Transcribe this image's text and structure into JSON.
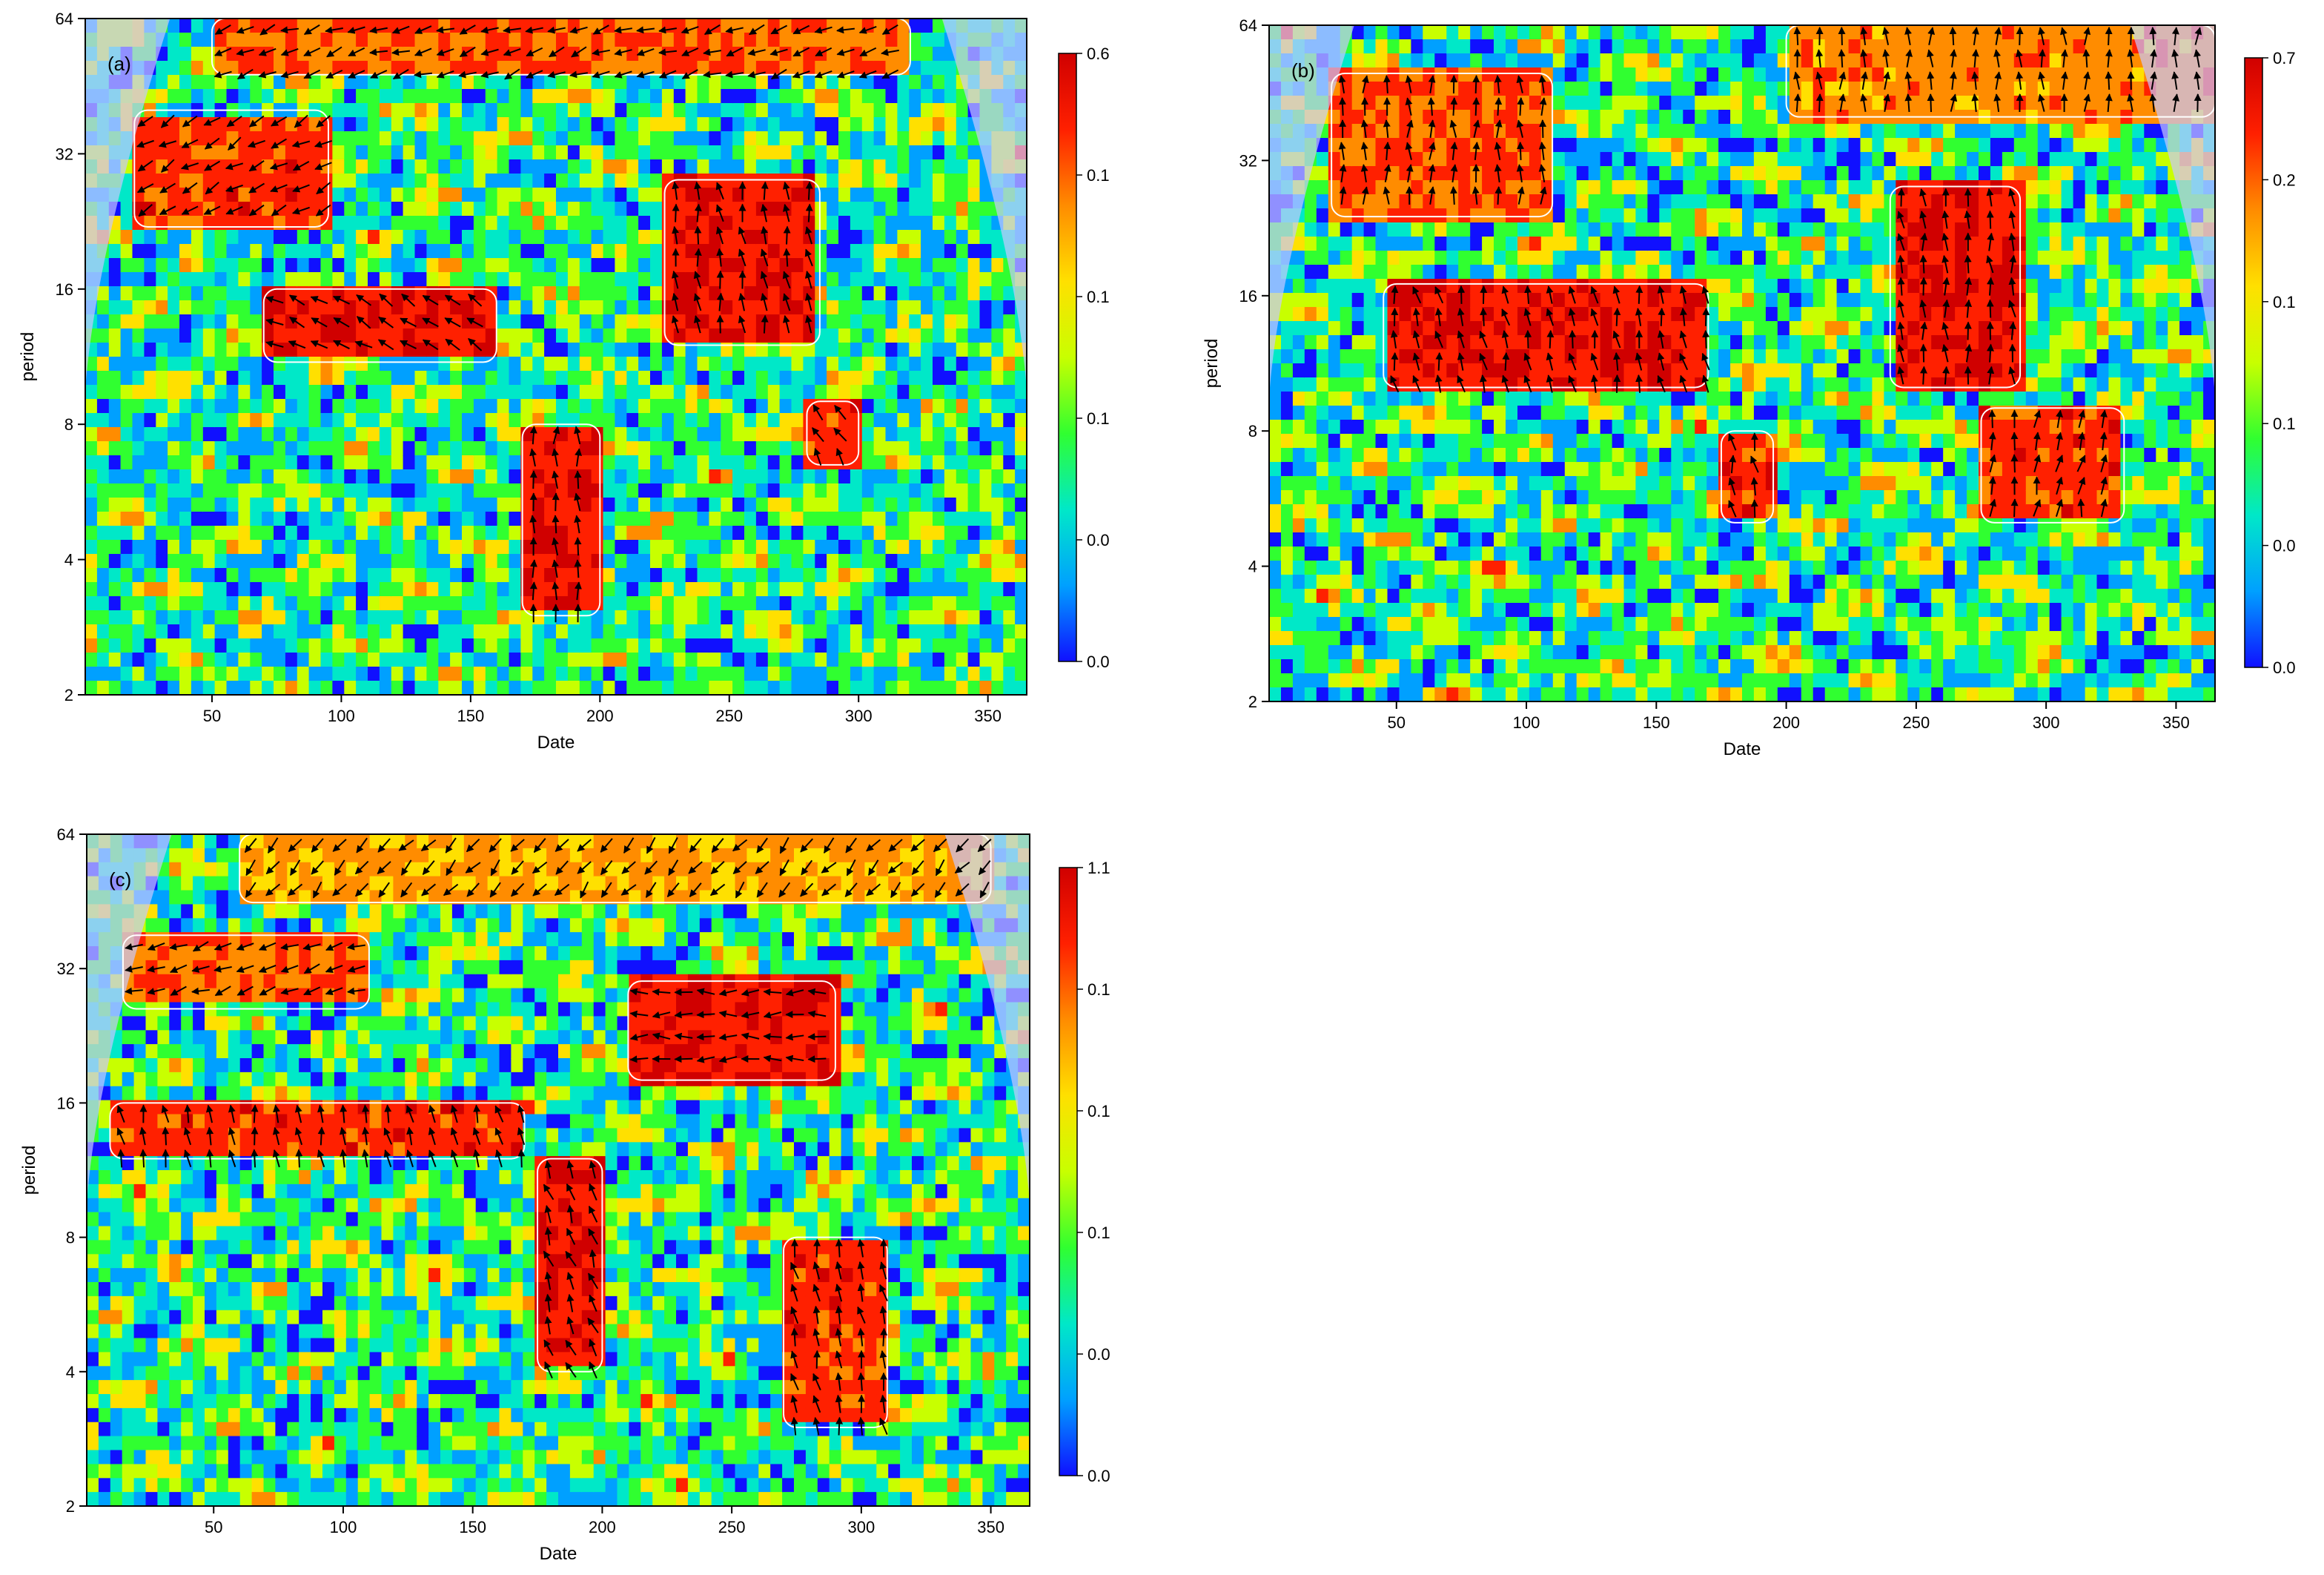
{
  "chart_data": [
    {
      "type": "heatmap",
      "panel_label": "(a)",
      "xlabel": "Date",
      "ylabel": "period",
      "xlim": [
        1,
        365
      ],
      "ylim": [
        2,
        64
      ],
      "y_scale": "log2",
      "x_ticks": [
        50,
        100,
        150,
        200,
        250,
        300,
        350
      ],
      "y_ticks": [
        2,
        4,
        8,
        16,
        32,
        64
      ],
      "colorbar_labels": [
        "0.6",
        "0.1",
        "0.1",
        "0.1",
        "0.0",
        "0.0"
      ],
      "colormap": [
        "#1010ff",
        "#00a0ff",
        "#00e8c8",
        "#30ff30",
        "#c8ff00",
        "#ffe000",
        "#ff8c00",
        "#ff2000",
        "#d00000"
      ],
      "regions": [
        {
          "x0": 20,
          "x1": 95,
          "p0": 22,
          "p1": 40,
          "level": 0.9,
          "arrow_dir": 210
        },
        {
          "x0": 50,
          "x1": 320,
          "p0": 48,
          "p1": 64,
          "level": 0.85,
          "arrow_dir": 200
        },
        {
          "x0": 70,
          "x1": 160,
          "p0": 11,
          "p1": 16,
          "level": 0.95,
          "arrow_dir": 150
        },
        {
          "x0": 225,
          "x1": 285,
          "p0": 12,
          "p1": 28,
          "level": 0.95,
          "arrow_dir": 100
        },
        {
          "x0": 170,
          "x1": 200,
          "p0": 3,
          "p1": 8,
          "level": 0.95,
          "arrow_dir": 90
        },
        {
          "x0": 280,
          "x1": 300,
          "p0": 6.5,
          "p1": 9,
          "level": 0.9,
          "arrow_dir": 120
        }
      ]
    },
    {
      "type": "heatmap",
      "panel_label": "(b)",
      "xlabel": "Date",
      "ylabel": "period",
      "xlim": [
        1,
        365
      ],
      "ylim": [
        2,
        64
      ],
      "y_scale": "log2",
      "x_ticks": [
        50,
        100,
        150,
        200,
        250,
        300,
        350
      ],
      "y_ticks": [
        2,
        4,
        8,
        16,
        32,
        64
      ],
      "colorbar_labels": [
        "0.7",
        "0.2",
        "0.1",
        "0.1",
        "0.0",
        "0.0"
      ],
      "colormap": [
        "#1010ff",
        "#00a0ff",
        "#00e8c8",
        "#30ff30",
        "#c8ff00",
        "#ffe000",
        "#ff8c00",
        "#ff2000",
        "#d00000"
      ],
      "regions": [
        {
          "x0": 25,
          "x1": 110,
          "p0": 24,
          "p1": 50,
          "level": 0.85,
          "arrow_dir": 90
        },
        {
          "x0": 200,
          "x1": 365,
          "p0": 40,
          "p1": 64,
          "level": 0.8,
          "arrow_dir": 90
        },
        {
          "x0": 45,
          "x1": 170,
          "p0": 10,
          "p1": 17,
          "level": 0.95,
          "arrow_dir": 100
        },
        {
          "x0": 240,
          "x1": 290,
          "p0": 10,
          "p1": 28,
          "level": 0.95,
          "arrow_dir": 95
        },
        {
          "x0": 275,
          "x1": 330,
          "p0": 5,
          "p1": 9,
          "level": 0.9,
          "arrow_dir": 80
        },
        {
          "x0": 175,
          "x1": 195,
          "p0": 5,
          "p1": 8,
          "level": 0.9,
          "arrow_dir": 100
        }
      ]
    },
    {
      "type": "heatmap",
      "panel_label": "(c)",
      "xlabel": "Date",
      "ylabel": "period",
      "xlim": [
        1,
        365
      ],
      "ylim": [
        2,
        64
      ],
      "y_scale": "log2",
      "x_ticks": [
        50,
        100,
        150,
        200,
        250,
        300,
        350
      ],
      "y_ticks": [
        2,
        4,
        8,
        16,
        32,
        64
      ],
      "colorbar_labels": [
        "1.1",
        "0.1",
        "0.1",
        "0.1",
        "0.0",
        "0.0"
      ],
      "colormap": [
        "#1010ff",
        "#00a0ff",
        "#00e8c8",
        "#30ff30",
        "#c8ff00",
        "#ffe000",
        "#ff8c00",
        "#ff2000",
        "#d00000"
      ],
      "regions": [
        {
          "x0": 15,
          "x1": 110,
          "p0": 26,
          "p1": 38,
          "level": 0.85,
          "arrow_dir": 200
        },
        {
          "x0": 60,
          "x1": 350,
          "p0": 45,
          "p1": 64,
          "level": 0.75,
          "arrow_dir": 230
        },
        {
          "x0": 210,
          "x1": 290,
          "p0": 18,
          "p1": 30,
          "level": 0.95,
          "arrow_dir": 180
        },
        {
          "x0": 10,
          "x1": 170,
          "p0": 12,
          "p1": 16,
          "level": 0.9,
          "arrow_dir": 100
        },
        {
          "x0": 175,
          "x1": 200,
          "p0": 4,
          "p1": 12,
          "level": 0.95,
          "arrow_dir": 110
        },
        {
          "x0": 270,
          "x1": 310,
          "p0": 3,
          "p1": 8,
          "level": 0.9,
          "arrow_dir": 100
        }
      ]
    }
  ]
}
